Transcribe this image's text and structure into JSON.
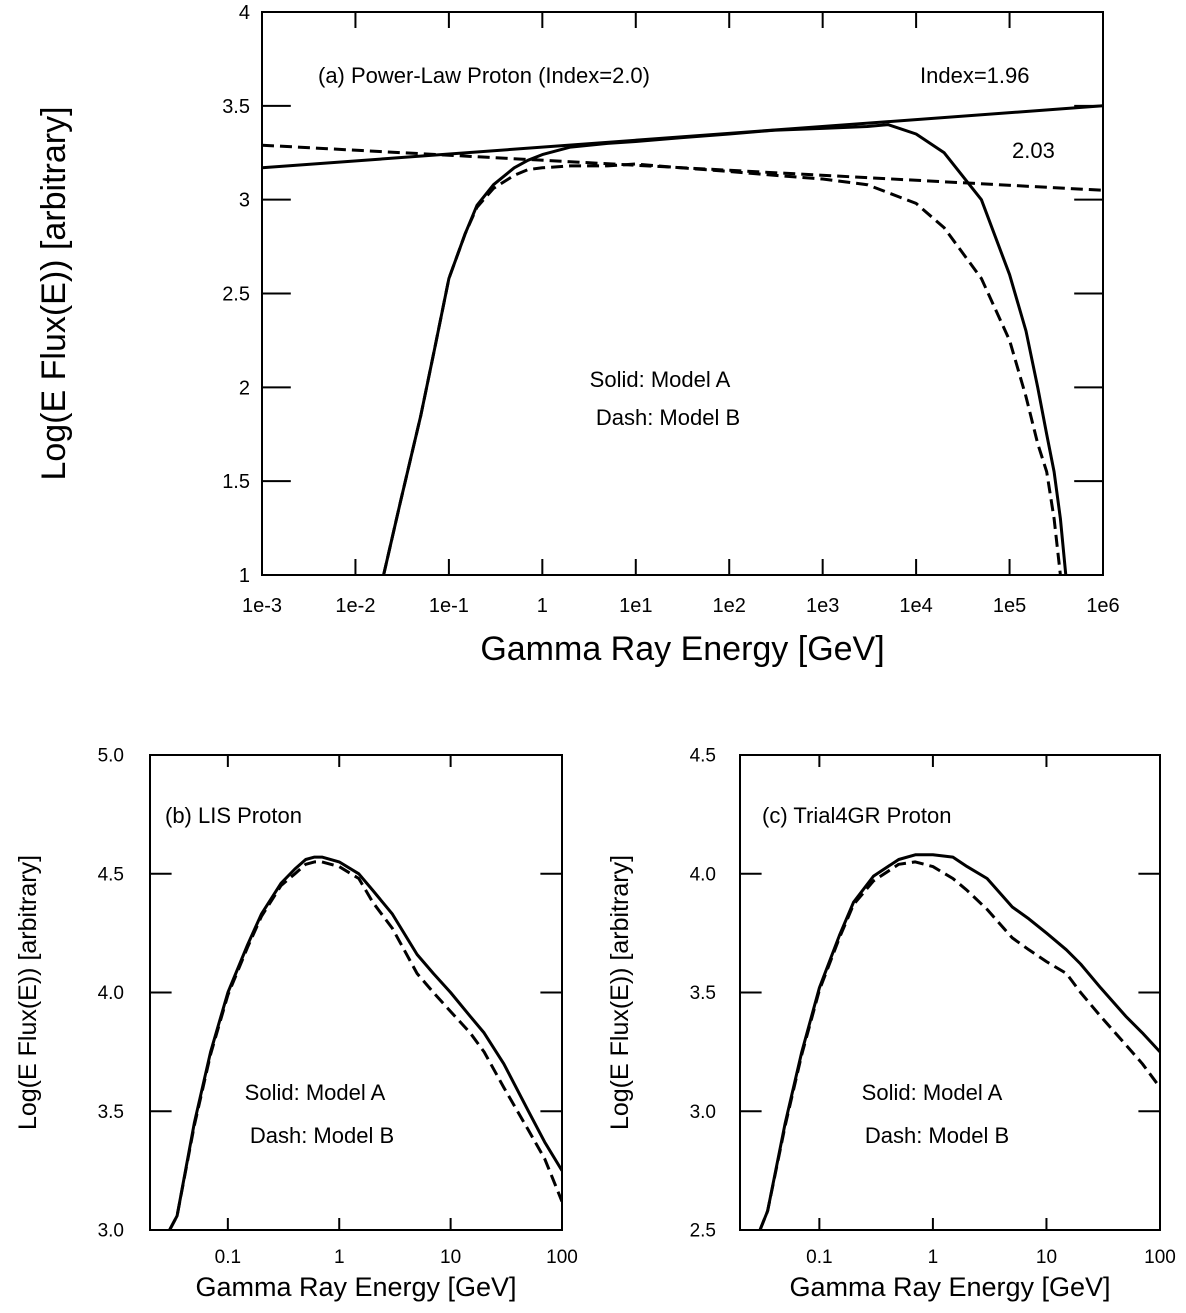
{
  "chart_data": [
    {
      "id": "a",
      "type": "line",
      "title": "",
      "annotation": "(a) Power-Law Proton (Index=2.0)",
      "legend_lines": [
        "Solid: Model A",
        "Dash: Model B"
      ],
      "xlabel": "Gamma Ray Energy [GeV]",
      "ylabel": "Log(E Flux(E)) [arbitrary]",
      "x_scale": "log",
      "xlim": [
        0.001,
        1000000
      ],
      "ylim": [
        1,
        4
      ],
      "x_ticks": [
        {
          "value": 0.001,
          "label": "1e-3"
        },
        {
          "value": 0.01,
          "label": "1e-2"
        },
        {
          "value": 0.1,
          "label": "1e-1"
        },
        {
          "value": 1,
          "label": "1"
        },
        {
          "value": 10,
          "label": "1e1"
        },
        {
          "value": 100,
          "label": "1e2"
        },
        {
          "value": 1000,
          "label": "1e3"
        },
        {
          "value": 10000,
          "label": "1e4"
        },
        {
          "value": 100000,
          "label": "1e5"
        },
        {
          "value": 1000000,
          "label": "1e6"
        }
      ],
      "y_ticks": [
        {
          "value": 1,
          "label": "1"
        },
        {
          "value": 1.5,
          "label": "1.5"
        },
        {
          "value": 2,
          "label": "2"
        },
        {
          "value": 2.5,
          "label": "2.5"
        },
        {
          "value": 3,
          "label": "3"
        },
        {
          "value": 3.5,
          "label": "3.5"
        },
        {
          "value": 4,
          "label": "4"
        }
      ],
      "series": [
        {
          "name": "Model A",
          "style": "solid",
          "x": [
            0.02,
            0.03,
            0.05,
            0.07,
            0.1,
            0.15,
            0.2,
            0.3,
            0.5,
            0.7,
            1,
            2,
            5,
            10,
            30,
            100,
            300,
            1000,
            3000,
            5000,
            10000,
            20000,
            50000,
            100000,
            150000,
            200000,
            250000,
            300000,
            350000,
            400000
          ],
          "y": [
            1.0,
            1.38,
            1.85,
            2.2,
            2.58,
            2.82,
            2.97,
            3.08,
            3.17,
            3.21,
            3.24,
            3.28,
            3.3,
            3.31,
            3.33,
            3.35,
            3.37,
            3.38,
            3.39,
            3.4,
            3.35,
            3.25,
            3.0,
            2.6,
            2.3,
            2.0,
            1.75,
            1.55,
            1.3,
            1.0
          ]
        },
        {
          "name": "Model B",
          "style": "dash",
          "x": [
            0.02,
            0.03,
            0.05,
            0.07,
            0.1,
            0.15,
            0.2,
            0.3,
            0.5,
            0.7,
            1,
            2,
            5,
            10,
            30,
            100,
            300,
            1000,
            3000,
            10000,
            20000,
            50000,
            100000,
            150000,
            200000,
            250000,
            300000,
            350000
          ],
          "y": [
            1.0,
            1.38,
            1.85,
            2.2,
            2.58,
            2.82,
            2.96,
            3.06,
            3.13,
            3.16,
            3.17,
            3.18,
            3.18,
            3.19,
            3.17,
            3.15,
            3.13,
            3.11,
            3.08,
            2.98,
            2.85,
            2.58,
            2.25,
            1.95,
            1.7,
            1.55,
            1.3,
            1.0
          ]
        },
        {
          "name": "Index=1.96",
          "style": "solid",
          "label": "Index=1.96",
          "x": [
            0.001,
            1000000
          ],
          "y": [
            3.17,
            3.5
          ]
        },
        {
          "name": "2.03",
          "style": "dash",
          "label": "2.03",
          "x": [
            0.001,
            1000000
          ],
          "y": [
            3.29,
            3.05
          ]
        }
      ]
    },
    {
      "id": "b",
      "type": "line",
      "title": "",
      "annotation": "(b) LIS Proton",
      "legend_lines": [
        "Solid: Model A",
        "Dash: Model B"
      ],
      "xlabel": "Gamma Ray Energy [GeV]",
      "ylabel": "Log(E Flux(E)) [arbitrary]",
      "x_scale": "log",
      "xlim": [
        0.02,
        100
      ],
      "ylim": [
        3.0,
        5.0
      ],
      "x_ticks": [
        {
          "value": 0.1,
          "label": "0.1"
        },
        {
          "value": 1,
          "label": "1"
        },
        {
          "value": 10,
          "label": "10"
        },
        {
          "value": 100,
          "label": "100"
        }
      ],
      "y_ticks": [
        {
          "value": 3.0,
          "label": "3.0"
        },
        {
          "value": 3.5,
          "label": "3.5"
        },
        {
          "value": 4.0,
          "label": "4.0"
        },
        {
          "value": 4.5,
          "label": "4.5"
        },
        {
          "value": 5.0,
          "label": "5.0"
        }
      ],
      "series": [
        {
          "name": "Model A",
          "style": "solid",
          "x": [
            0.03,
            0.035,
            0.05,
            0.07,
            0.1,
            0.15,
            0.2,
            0.3,
            0.4,
            0.5,
            0.6,
            0.7,
            1,
            1.5,
            2,
            3,
            5,
            7,
            10,
            15,
            20,
            30,
            50,
            70,
            100
          ],
          "y": [
            3.0,
            3.06,
            3.45,
            3.75,
            4.0,
            4.2,
            4.33,
            4.46,
            4.52,
            4.56,
            4.57,
            4.57,
            4.55,
            4.5,
            4.43,
            4.33,
            4.16,
            4.08,
            4.0,
            3.9,
            3.83,
            3.7,
            3.5,
            3.37,
            3.25
          ]
        },
        {
          "name": "Model B",
          "style": "dash",
          "x": [
            0.03,
            0.035,
            0.05,
            0.07,
            0.1,
            0.15,
            0.2,
            0.3,
            0.4,
            0.5,
            0.6,
            0.7,
            1,
            1.5,
            2,
            3,
            5,
            7,
            10,
            15,
            20,
            30,
            50,
            70,
            100
          ],
          "y": [
            3.0,
            3.06,
            3.44,
            3.74,
            3.99,
            4.19,
            4.32,
            4.45,
            4.5,
            4.54,
            4.55,
            4.55,
            4.53,
            4.48,
            4.38,
            4.27,
            4.08,
            4.0,
            3.92,
            3.83,
            3.75,
            3.6,
            3.42,
            3.3,
            3.12
          ]
        }
      ]
    },
    {
      "id": "c",
      "type": "line",
      "title": "",
      "annotation": "(c) Trial4GR Proton",
      "legend_lines": [
        "Solid: Model A",
        "Dash: Model B"
      ],
      "xlabel": "Gamma Ray Energy [GeV]",
      "ylabel": "Log(E Flux(E)) [arbitrary]",
      "x_scale": "log",
      "xlim": [
        0.02,
        100
      ],
      "ylim": [
        2.5,
        4.5
      ],
      "x_ticks": [
        {
          "value": 0.1,
          "label": "0.1"
        },
        {
          "value": 1,
          "label": "1"
        },
        {
          "value": 10,
          "label": "10"
        },
        {
          "value": 100,
          "label": "100"
        }
      ],
      "y_ticks": [
        {
          "value": 2.5,
          "label": "2.5"
        },
        {
          "value": 3.0,
          "label": "3.0"
        },
        {
          "value": 3.5,
          "label": "3.5"
        },
        {
          "value": 4.0,
          "label": "4.0"
        },
        {
          "value": 4.5,
          "label": "4.5"
        }
      ],
      "series": [
        {
          "name": "Model A",
          "style": "solid",
          "x": [
            0.03,
            0.035,
            0.05,
            0.07,
            0.1,
            0.15,
            0.2,
            0.3,
            0.5,
            0.7,
            1,
            1.5,
            2,
            3,
            5,
            7,
            10,
            15,
            20,
            30,
            50,
            70,
            100
          ],
          "y": [
            2.5,
            2.58,
            2.95,
            3.25,
            3.52,
            3.74,
            3.88,
            3.99,
            4.06,
            4.08,
            4.08,
            4.07,
            4.03,
            3.98,
            3.86,
            3.81,
            3.75,
            3.68,
            3.62,
            3.52,
            3.4,
            3.33,
            3.25
          ]
        },
        {
          "name": "Model B",
          "style": "dash",
          "x": [
            0.03,
            0.035,
            0.05,
            0.07,
            0.1,
            0.15,
            0.2,
            0.3,
            0.5,
            0.7,
            1,
            1.5,
            2,
            3,
            5,
            7,
            10,
            15,
            20,
            30,
            50,
            70,
            100
          ],
          "y": [
            2.5,
            2.58,
            2.94,
            3.24,
            3.51,
            3.73,
            3.87,
            3.97,
            4.04,
            4.05,
            4.03,
            3.98,
            3.93,
            3.85,
            3.73,
            3.68,
            3.63,
            3.58,
            3.5,
            3.4,
            3.28,
            3.2,
            3.1
          ]
        }
      ]
    }
  ]
}
